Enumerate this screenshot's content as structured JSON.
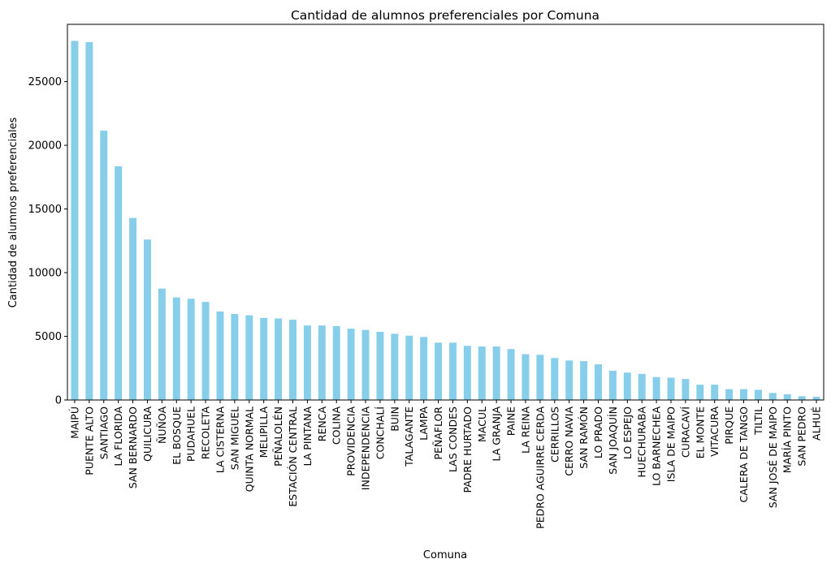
{
  "chart_data": {
    "type": "bar",
    "title": "Cantidad de alumnos preferenciales por Comuna",
    "xlabel": "Comuna",
    "ylabel": "Cantidad de alumnos preferenciales",
    "ylim": [
      0,
      29500
    ],
    "yticks": [
      0,
      5000,
      10000,
      15000,
      20000,
      25000
    ],
    "bar_color": "#87ceeb",
    "categories": [
      "MAIPÚ",
      "PUENTE ALTO",
      "SANTIAGO",
      "LA FLORIDA",
      "SAN BERNARDO",
      "QUILICURA",
      "ÑUÑOA",
      "EL BOSQUE",
      "PUDAHUEL",
      "RECOLETA",
      "LA CISTERNA",
      "SAN MIGUEL",
      "QUINTA NORMAL",
      "MELIPILLA",
      "PEÑALOLÉN",
      "ESTACIÓN CENTRAL",
      "LA PINTANA",
      "RENCA",
      "COLINA",
      "PROVIDENCIA",
      "INDEPENDENCIA",
      "CONCHALÍ",
      "BUIN",
      "TALAGANTE",
      "LAMPA",
      "PEÑAFLOR",
      "LAS CONDES",
      "PADRE HURTADO",
      "MACUL",
      "LA GRANJA",
      "PAINE",
      "LA REINA",
      "PEDRO AGUIRRE CERDA",
      "CERRILLOS",
      "CERRO NAVIA",
      "SAN RAMÓN",
      "LO PRADO",
      "SAN JOAQUÍN",
      "LO ESPEJO",
      "HUECHURABA",
      "LO BARNECHEA",
      "ISLA DE MAIPO",
      "CURACAVÍ",
      "EL MONTE",
      "VITACURA",
      "PIRQUE",
      "CALERA DE TANGO",
      "TILTIL",
      "SAN JOSÉ DE MAIPO",
      "MARÍA PINTO",
      "SAN PEDRO",
      "ALHUÉ"
    ],
    "values": [
      28200,
      28100,
      21150,
      18350,
      14300,
      12600,
      8750,
      8050,
      7950,
      7700,
      6950,
      6750,
      6650,
      6450,
      6400,
      6300,
      5850,
      5850,
      5800,
      5600,
      5500,
      5350,
      5200,
      5050,
      4950,
      4500,
      4500,
      4250,
      4200,
      4200,
      4000,
      3600,
      3550,
      3300,
      3100,
      3050,
      2800,
      2300,
      2150,
      2050,
      1800,
      1750,
      1650,
      1200,
      1200,
      850,
      850,
      800,
      550,
      450,
      300,
      250
    ]
  }
}
